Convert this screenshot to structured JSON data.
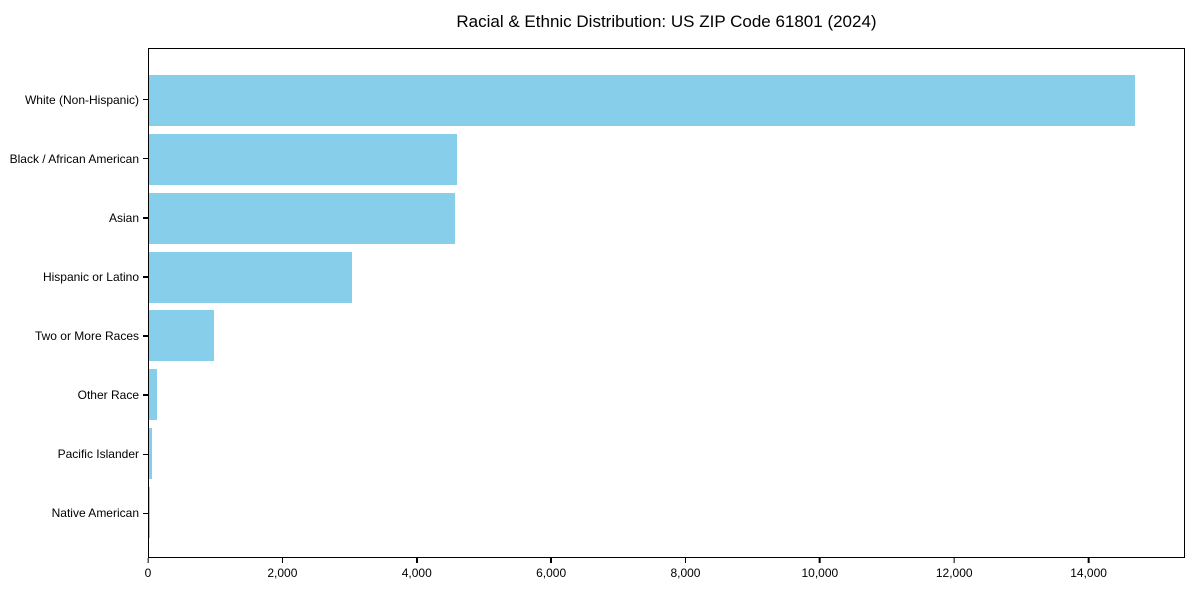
{
  "chart_data": {
    "type": "bar",
    "orientation": "horizontal",
    "title": "Racial & Ethnic Distribution: US ZIP Code 61801 (2024)",
    "categories": [
      "White (Non-Hispanic)",
      "Black / African American",
      "Asian",
      "Hispanic or Latino",
      "Two or More Races",
      "Other Race",
      "Pacific Islander",
      "Native American"
    ],
    "values": [
      14700,
      4590,
      4560,
      3020,
      970,
      125,
      38,
      8
    ],
    "xticks": [
      0,
      2000,
      4000,
      6000,
      8000,
      10000,
      12000,
      14000
    ],
    "xtick_labels": [
      "0",
      "2,000",
      "4,000",
      "6,000",
      "8,000",
      "10,000",
      "12,000",
      "14,000"
    ],
    "xlim": [
      0,
      15435
    ],
    "xlabel": "",
    "ylabel": "",
    "grid": false,
    "legend": null,
    "bar_color": "#87CEEB",
    "spine_color": "#000000",
    "background_color": "#ffffff"
  }
}
